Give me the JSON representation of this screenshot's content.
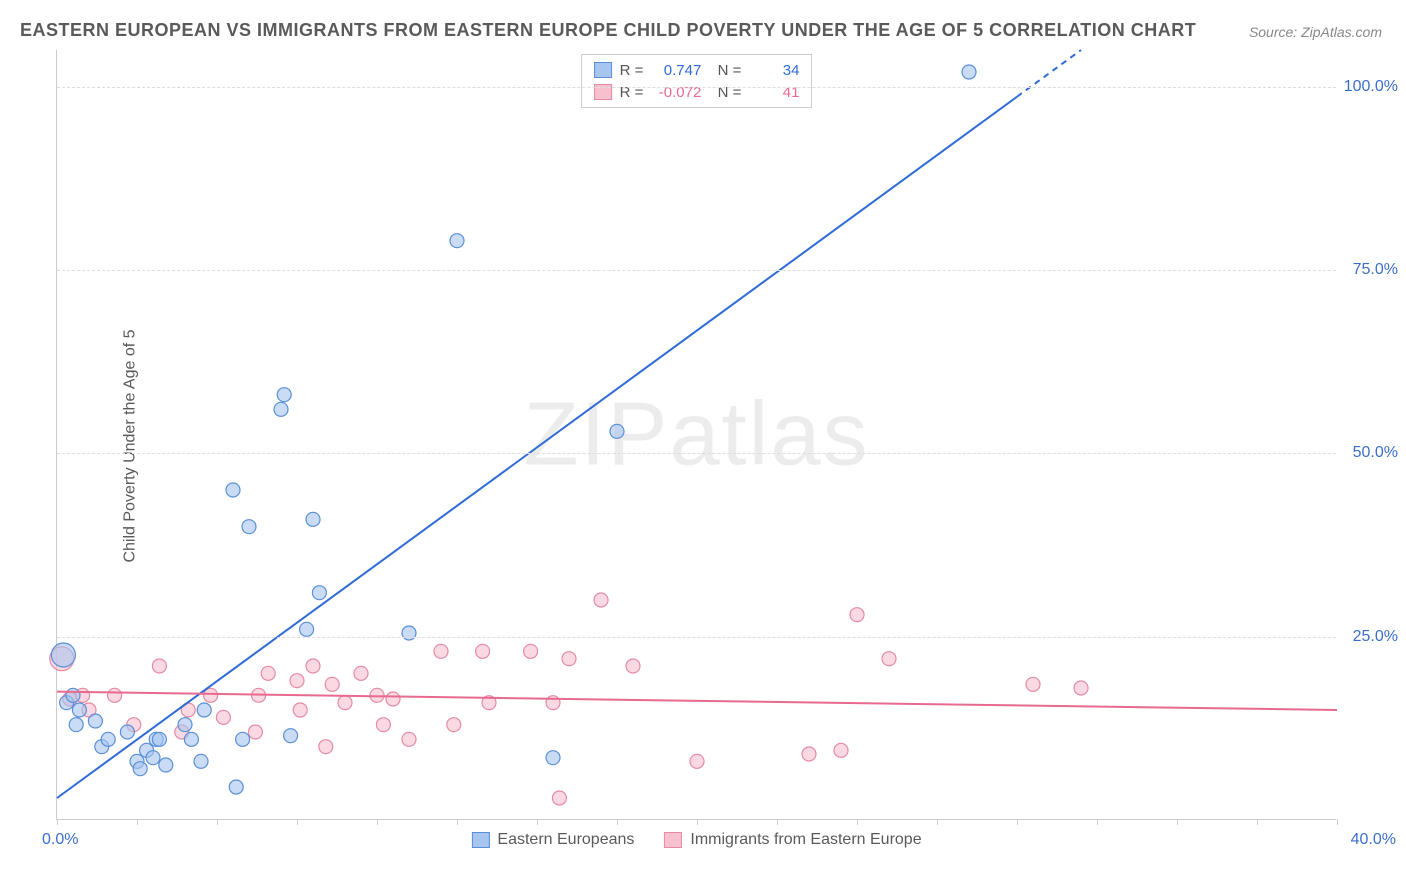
{
  "title": "EASTERN EUROPEAN VS IMMIGRANTS FROM EASTERN EUROPE CHILD POVERTY UNDER THE AGE OF 5 CORRELATION CHART",
  "source": "Source: ZipAtlas.com",
  "ylabel": "Child Poverty Under the Age of 5",
  "watermark": "ZIPatlas",
  "xlim": [
    0,
    40
  ],
  "ylim": [
    0,
    105
  ],
  "xticks": [
    0,
    2.5,
    5,
    7.5,
    10,
    12.5,
    15,
    17.5,
    20,
    22.5,
    25,
    27.5,
    30,
    32.5,
    35,
    37.5,
    40
  ],
  "yticks": [
    25,
    50,
    75,
    100
  ],
  "ytick_labels": [
    "25.0%",
    "50.0%",
    "75.0%",
    "100.0%"
  ],
  "xlabel_min": "0.0%",
  "xlabel_max": "40.0%",
  "series": [
    {
      "name": "Eastern Europeans",
      "color": "#2e6bd6",
      "fill": "#a7c5ee",
      "stroke": "#5a8fd8",
      "R": "0.747",
      "N": "34",
      "trend": {
        "x1": 0,
        "y1": 3,
        "x2": 32,
        "y2": 105,
        "dash_from_x": 30
      },
      "points": [
        [
          0.2,
          22.5,
          12
        ],
        [
          0.3,
          16,
          7
        ],
        [
          0.5,
          17,
          7
        ],
        [
          0.6,
          13,
          7
        ],
        [
          0.7,
          15,
          7
        ],
        [
          1.2,
          13.5,
          7
        ],
        [
          1.4,
          10,
          7
        ],
        [
          1.6,
          11,
          7
        ],
        [
          2.2,
          12,
          7
        ],
        [
          2.5,
          8,
          7
        ],
        [
          2.6,
          7,
          7
        ],
        [
          2.8,
          9.5,
          7
        ],
        [
          3.0,
          8.5,
          7
        ],
        [
          3.1,
          11,
          7
        ],
        [
          3.2,
          11,
          7
        ],
        [
          3.4,
          7.5,
          7
        ],
        [
          4.0,
          13,
          7
        ],
        [
          4.2,
          11,
          7
        ],
        [
          4.5,
          8,
          7
        ],
        [
          4.6,
          15,
          7
        ],
        [
          5.5,
          45,
          7
        ],
        [
          5.6,
          4.5,
          7
        ],
        [
          5.8,
          11,
          7
        ],
        [
          6.0,
          40,
          7
        ],
        [
          7.0,
          56,
          7
        ],
        [
          7.1,
          58,
          7
        ],
        [
          7.3,
          11.5,
          7
        ],
        [
          7.8,
          26,
          7
        ],
        [
          8.0,
          41,
          7
        ],
        [
          8.2,
          31,
          7
        ],
        [
          11.0,
          25.5,
          7
        ],
        [
          12.5,
          79,
          7
        ],
        [
          15.5,
          8.5,
          7
        ],
        [
          17.5,
          53,
          7
        ],
        [
          28.5,
          102,
          7
        ]
      ]
    },
    {
      "name": "Immigrants from Eastern Europe",
      "color": "#e86a8f",
      "fill": "#f7c0cf",
      "stroke": "#e58aa3",
      "R": "-0.072",
      "N": "41",
      "trend": {
        "x1": 0,
        "y1": 17.5,
        "x2": 40,
        "y2": 15
      },
      "points": [
        [
          0.15,
          22,
          12
        ],
        [
          0.4,
          16.5,
          7
        ],
        [
          0.8,
          17,
          7
        ],
        [
          1.0,
          15,
          7
        ],
        [
          1.8,
          17,
          7
        ],
        [
          2.4,
          13,
          7
        ],
        [
          3.2,
          21,
          7
        ],
        [
          3.9,
          12,
          7
        ],
        [
          4.1,
          15,
          7
        ],
        [
          4.8,
          17,
          7
        ],
        [
          5.2,
          14,
          7
        ],
        [
          6.2,
          12,
          7
        ],
        [
          6.3,
          17,
          7
        ],
        [
          6.6,
          20,
          7
        ],
        [
          7.5,
          19,
          7
        ],
        [
          7.6,
          15,
          7
        ],
        [
          8.0,
          21,
          7
        ],
        [
          8.4,
          10,
          7
        ],
        [
          8.6,
          18.5,
          7
        ],
        [
          9.0,
          16,
          7
        ],
        [
          9.5,
          20,
          7
        ],
        [
          10.0,
          17,
          7
        ],
        [
          10.2,
          13,
          7
        ],
        [
          10.5,
          16.5,
          7
        ],
        [
          11.0,
          11,
          7
        ],
        [
          12.0,
          23,
          7
        ],
        [
          12.4,
          13,
          7
        ],
        [
          13.3,
          23,
          7
        ],
        [
          13.5,
          16,
          7
        ],
        [
          14.8,
          23,
          7
        ],
        [
          15.5,
          16,
          7
        ],
        [
          15.7,
          3,
          7
        ],
        [
          16.0,
          22,
          7
        ],
        [
          17.0,
          30,
          7
        ],
        [
          18.0,
          21,
          7
        ],
        [
          20.0,
          8,
          7
        ],
        [
          23.5,
          9,
          7
        ],
        [
          24.5,
          9.5,
          7
        ],
        [
          25.0,
          28,
          7
        ],
        [
          26.0,
          22,
          7
        ],
        [
          30.5,
          18.5,
          7
        ],
        [
          32.0,
          18,
          7
        ]
      ]
    }
  ],
  "colors": {
    "title": "#5a5a5a",
    "axis": "#cccccc",
    "grid": "#dddddd",
    "tick_label": "#3b6fc9",
    "background": "#ffffff"
  }
}
